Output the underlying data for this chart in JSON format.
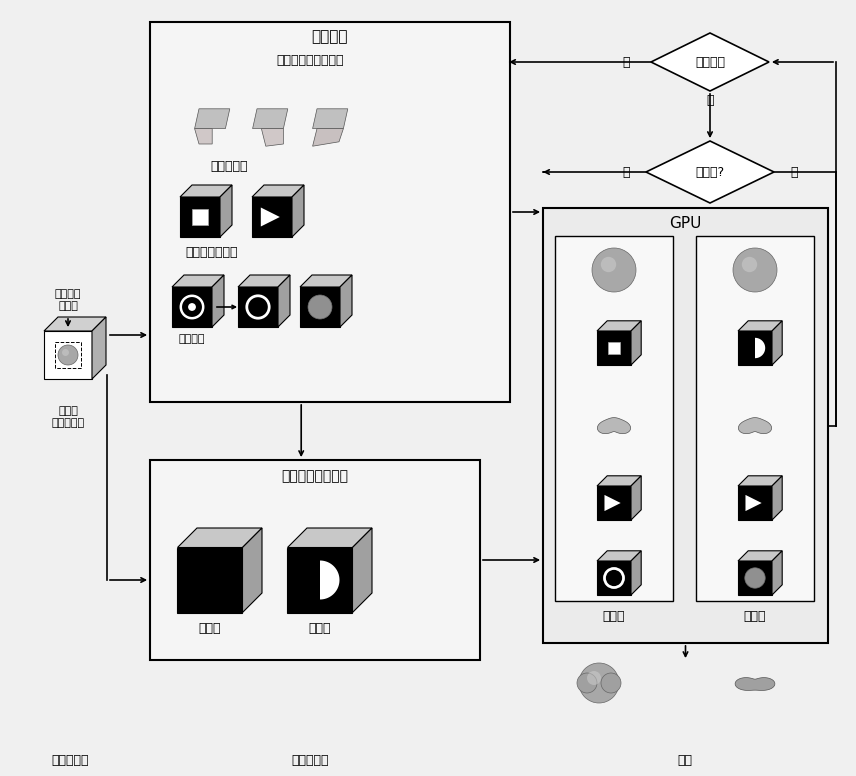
{
  "bg_color": "#f0f0f0",
  "labels": {
    "user_interface": "用户界面",
    "select_template": "选择、变换变形模板",
    "feature_field": "特征场创建",
    "feature_volume": "特征体数据创建",
    "segment_data": "分割数据",
    "inverse_recon": "逆速度位移场重建",
    "step1": "第一步",
    "step2": "第二步",
    "original_volume_1": "原始体",
    "original_volume_2": "数据空间",
    "inverse_field_1": "逆速度",
    "inverse_field_2": "位移场空间",
    "adjust_result": "调整结果",
    "more_steps": "更多步?",
    "yes": "是",
    "no": "否",
    "gpu": "GPU",
    "gpu_step1": "第一步",
    "gpu_step2": "第二步",
    "init_scene": "初始化场景",
    "volume_ops": "体数据操作",
    "rendering": "绘制"
  }
}
